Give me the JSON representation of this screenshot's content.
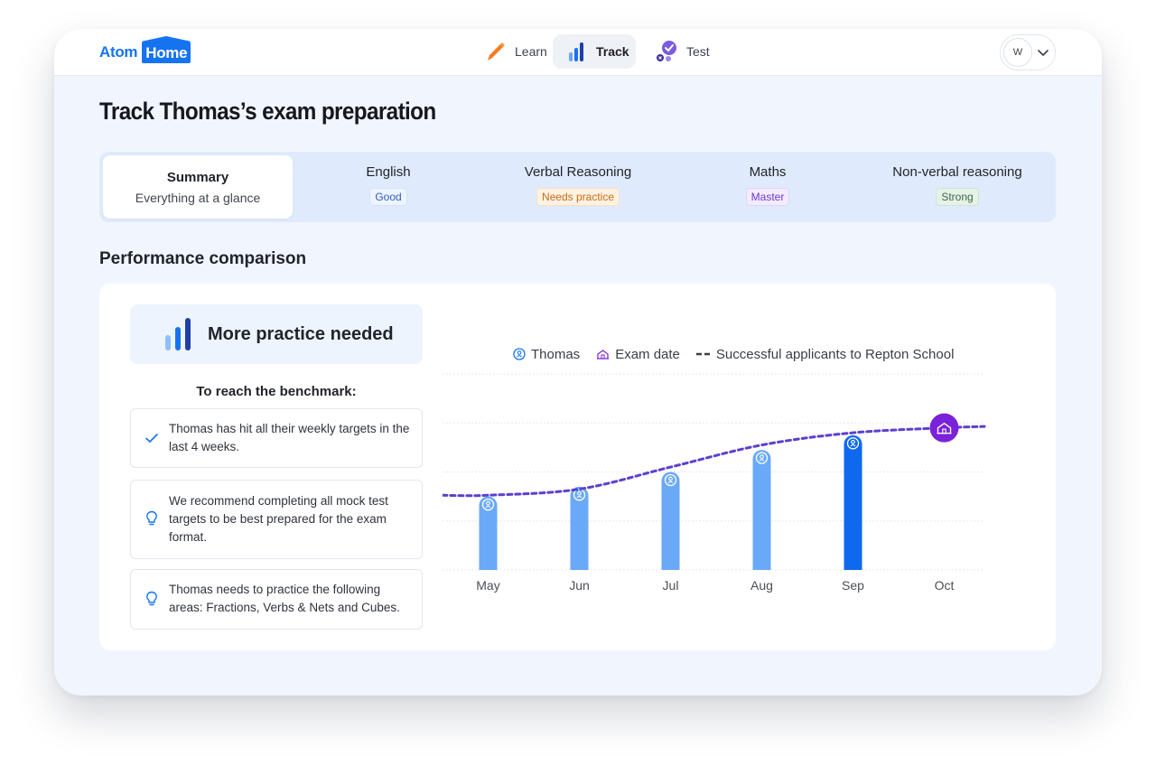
{
  "app": {
    "logo_part1": "Atom",
    "logo_part2": "Home"
  },
  "nav": {
    "learn": "Learn",
    "track": "Track",
    "test": "Test",
    "active": "Track"
  },
  "user": {
    "initial": "W"
  },
  "page": {
    "title": "Track Thomas’s exam preparation"
  },
  "tabs": {
    "summary": {
      "title": "Summary",
      "subtitle": "Everything at a glance"
    },
    "english": {
      "title": "English",
      "badge": "Good"
    },
    "verbal": {
      "title": "Verbal Reasoning",
      "badge": "Needs practice"
    },
    "maths": {
      "title": "Maths",
      "badge": "Master"
    },
    "nonverbal": {
      "title": "Non-verbal reasoning",
      "badge": "Strong"
    }
  },
  "performance": {
    "section_title": "Performance comparison",
    "status": "More practice needed",
    "benchmark_title": "To reach the benchmark:",
    "tips": [
      {
        "icon": "check-icon",
        "text": "Thomas has hit all their weekly targets in the last 4 weeks."
      },
      {
        "icon": "lightbulb-icon",
        "text": "We recommend completing all mock test targets to be best prepared for the exam format."
      },
      {
        "icon": "lightbulb-icon",
        "text": "Thomas needs to practice the following areas: Fractions, Verbs & Nets and Cubes."
      }
    ]
  },
  "colors": {
    "accent": "#1673f0",
    "bar_light": "#6aa9f8",
    "bar_current": "#0f69ef",
    "benchmark_line": "#5d3fcf",
    "exam_marker": "#7a22d9"
  },
  "chart_data": {
    "type": "bar",
    "categories": [
      "May",
      "Jun",
      "Jul",
      "Aug",
      "Sep",
      "Oct"
    ],
    "series": [
      {
        "name": "Thomas",
        "values": [
          30,
          34,
          40,
          49,
          55,
          null
        ]
      },
      {
        "name": "Successful applicants to Repton School",
        "type": "line",
        "style": "dashed",
        "values": [
          30.5,
          33,
          42,
          51,
          56,
          58
        ]
      }
    ],
    "current_index": 4,
    "exam_date": {
      "label": "Exam date",
      "category": "Oct"
    },
    "legend": [
      "Thomas",
      "Exam date",
      "Successful applicants to Repton School"
    ],
    "legend_position": "top",
    "ylim": [
      0,
      80
    ],
    "y_axis_labels": false,
    "grid": true
  }
}
